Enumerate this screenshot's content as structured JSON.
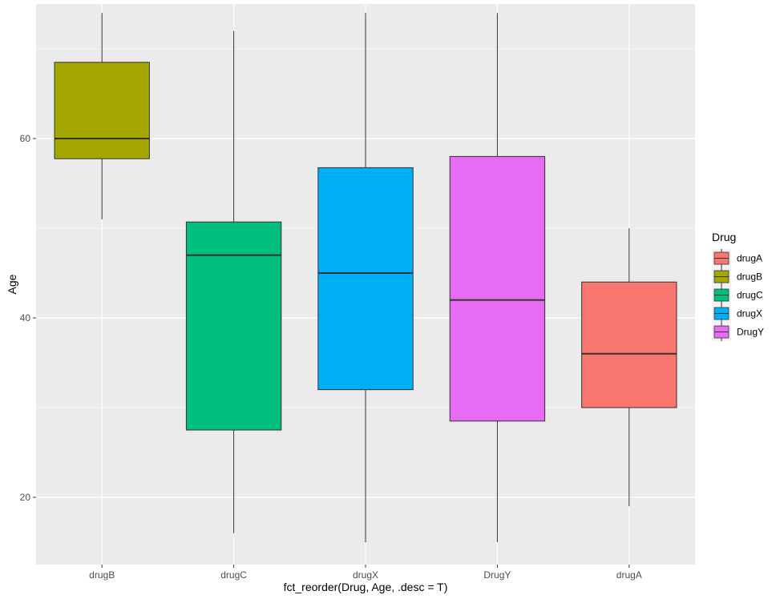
{
  "chart_data": {
    "type": "boxplot",
    "xlabel": "fct_reorder(Drug, Age, .desc = T)",
    "ylabel": "Age",
    "ylim": [
      12.5,
      75
    ],
    "yticks": [
      20,
      40,
      60
    ],
    "grid": true,
    "legend": {
      "title": "Drug",
      "placement": "right",
      "entries": [
        {
          "label": "drugA",
          "color": "#F8766D"
        },
        {
          "label": "drugB",
          "color": "#A3A500"
        },
        {
          "label": "drugC",
          "color": "#00BF7D"
        },
        {
          "label": "drugX",
          "color": "#00B0F6"
        },
        {
          "label": "DrugY",
          "color": "#E76BF3"
        }
      ]
    },
    "categories": [
      "drugB",
      "drugC",
      "drugX",
      "DrugY",
      "drugA"
    ],
    "boxes": [
      {
        "category": "drugB",
        "color": "#A3A500",
        "whisker_low": 51,
        "q1": 57.75,
        "median": 60,
        "q3": 68.5,
        "whisker_high": 74
      },
      {
        "category": "drugC",
        "color": "#00BF7D",
        "whisker_low": 16,
        "q1": 27.5,
        "median": 47,
        "q3": 50.7,
        "whisker_high": 72
      },
      {
        "category": "drugX",
        "color": "#00B0F6",
        "whisker_low": 15,
        "q1": 32,
        "median": 45,
        "q3": 56.75,
        "whisker_high": 74
      },
      {
        "category": "DrugY",
        "color": "#E76BF3",
        "whisker_low": 15,
        "q1": 28.5,
        "median": 42,
        "q3": 58,
        "whisker_high": 74
      },
      {
        "category": "drugA",
        "color": "#F8766D",
        "whisker_low": 19,
        "q1": 30,
        "median": 36,
        "q3": 44,
        "whisker_high": 50
      }
    ]
  }
}
